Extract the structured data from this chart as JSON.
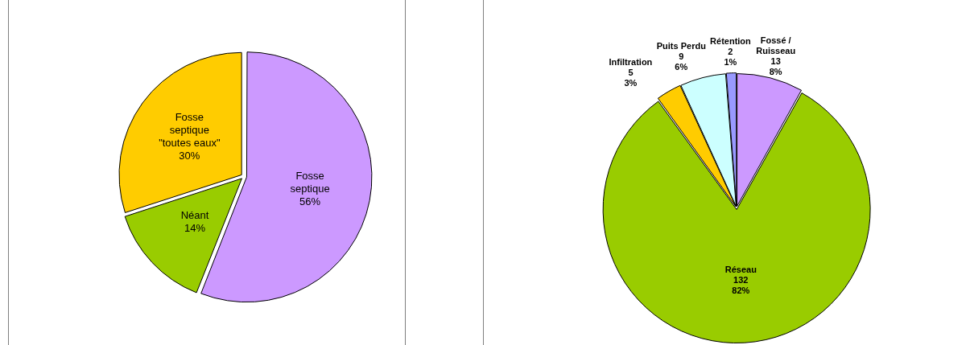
{
  "chart_data": [
    {
      "type": "pie",
      "categories": [
        "Fosse septique",
        "Néant",
        "Fosse septique \"toutes eaux\""
      ],
      "values": [
        56,
        14,
        30
      ],
      "colors": [
        "#cc99ff",
        "#99cc00",
        "#ffcc00"
      ],
      "value_labels": [
        "56%",
        "14%",
        "30%"
      ],
      "legend": false
    },
    {
      "type": "pie",
      "categories": [
        "Fossé / Ruisseau",
        "Réseau",
        "Infiltration",
        "Puits Perdu",
        "Rétention"
      ],
      "values": [
        13,
        132,
        5,
        9,
        2
      ],
      "colors": [
        "#cc99ff",
        "#99cc00",
        "#ffcc00",
        "#ccffff",
        "#9999ff"
      ],
      "value_labels": [
        "13\n8%",
        "132\n82%",
        "5\n3%",
        "9\n6%",
        "2\n1%"
      ],
      "legend": false
    }
  ]
}
